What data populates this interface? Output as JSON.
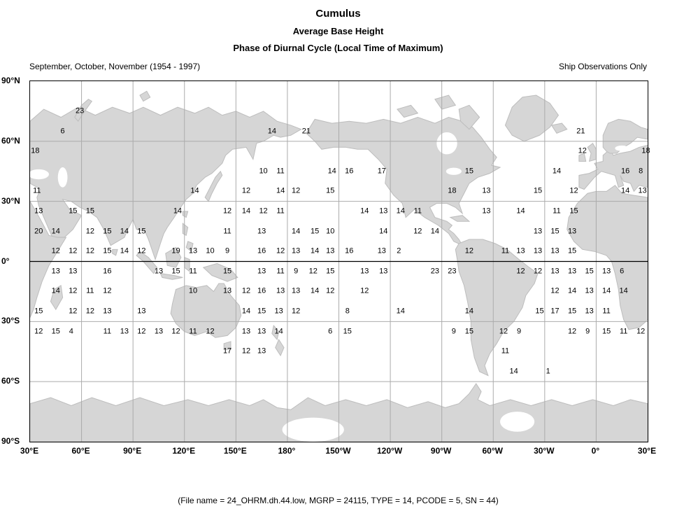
{
  "header": {
    "title": "Cumulus",
    "variable": "Average Base Height",
    "statistic": "Phase of Diurnal Cycle (Local Time of Maximum)",
    "period": "September, October, November (1954 - 1997)",
    "note": "Ship Observations Only"
  },
  "footer": {
    "text": "(File name = 24_OHRM.dh.44.low, MGRP = 24115, TYPE = 14, PCODE = 5, SN = 44)"
  },
  "colors": {
    "land": "#d6d6d6",
    "coast": "#bdbdbd",
    "grid": "#ababab",
    "frame": "#000000"
  },
  "chart_data": {
    "type": "heatmap",
    "title": "Cumulus — Average Base Height — Phase of Diurnal Cycle (Local Time of Maximum)",
    "legend_position": "none",
    "grid": true,
    "cell_size_deg": 10,
    "x_axis": {
      "ticks": [
        "30°E",
        "60°E",
        "90°E",
        "120°E",
        "150°E",
        "180°",
        "150°W",
        "120°W",
        "90°W",
        "60°W",
        "30°W",
        "0°",
        "30°E"
      ],
      "range_deg_east_of_30E": [
        0,
        360
      ]
    },
    "y_axis": {
      "ticks": [
        "90°N",
        "60°N",
        "30°N",
        "0°",
        "30°S",
        "60°S",
        "90°S"
      ],
      "range_lat": [
        90,
        -90
      ]
    },
    "rows": [
      {
        "lat": 75,
        "points": [
          [
            29,
            23
          ]
        ]
      },
      {
        "lat": 65,
        "points": [
          [
            19,
            6
          ],
          [
            141,
            14
          ],
          [
            161,
            21
          ],
          [
            321,
            21
          ]
        ]
      },
      {
        "lat": 55,
        "points": [
          [
            3,
            18
          ],
          [
            322,
            12
          ],
          [
            359,
            18
          ]
        ]
      },
      {
        "lat": 45,
        "points": [
          [
            136,
            10
          ],
          [
            146,
            11
          ],
          [
            176,
            14
          ],
          [
            186,
            16
          ],
          [
            205,
            17
          ],
          [
            256,
            15
          ],
          [
            307,
            14
          ],
          [
            347,
            16
          ],
          [
            356,
            8
          ]
        ]
      },
      {
        "lat": 35,
        "points": [
          [
            4,
            11
          ],
          [
            96,
            14
          ],
          [
            126,
            12
          ],
          [
            146,
            14
          ],
          [
            155,
            12
          ],
          [
            175,
            15
          ],
          [
            246,
            18
          ],
          [
            266,
            13
          ],
          [
            296,
            15
          ],
          [
            317,
            12
          ],
          [
            347,
            14
          ],
          [
            357,
            13
          ]
        ]
      },
      {
        "lat": 25,
        "points": [
          [
            5,
            13
          ],
          [
            25,
            15
          ],
          [
            35,
            15
          ],
          [
            86,
            14
          ],
          [
            115,
            12
          ],
          [
            126,
            14
          ],
          [
            136,
            12
          ],
          [
            146,
            11
          ],
          [
            195,
            14
          ],
          [
            206,
            13
          ],
          [
            216,
            14
          ],
          [
            226,
            11
          ],
          [
            266,
            13
          ],
          [
            286,
            14
          ],
          [
            307,
            11
          ],
          [
            317,
            15
          ]
        ]
      },
      {
        "lat": 15,
        "points": [
          [
            5,
            20
          ],
          [
            15,
            14
          ],
          [
            35,
            12
          ],
          [
            45,
            15
          ],
          [
            55,
            14
          ],
          [
            65,
            15
          ],
          [
            115,
            11
          ],
          [
            135,
            13
          ],
          [
            155,
            14
          ],
          [
            166,
            15
          ],
          [
            175,
            10
          ],
          [
            206,
            14
          ],
          [
            226,
            12
          ],
          [
            236,
            14
          ],
          [
            296,
            13
          ],
          [
            306,
            15
          ],
          [
            316,
            13
          ]
        ]
      },
      {
        "lat": 5,
        "points": [
          [
            15,
            12
          ],
          [
            25,
            12
          ],
          [
            35,
            12
          ],
          [
            45,
            15
          ],
          [
            55,
            14
          ],
          [
            65,
            12
          ],
          [
            85,
            19
          ],
          [
            95,
            13
          ],
          [
            105,
            10
          ],
          [
            115,
            9
          ],
          [
            135,
            16
          ],
          [
            146,
            12
          ],
          [
            155,
            13
          ],
          [
            166,
            14
          ],
          [
            175,
            13
          ],
          [
            186,
            16
          ],
          [
            205,
            13
          ],
          [
            215,
            2
          ],
          [
            256,
            12
          ],
          [
            277,
            11
          ],
          [
            286,
            13
          ],
          [
            296,
            13
          ],
          [
            306,
            13
          ],
          [
            316,
            15
          ]
        ]
      },
      {
        "lat": -5,
        "points": [
          [
            15,
            13
          ],
          [
            25,
            13
          ],
          [
            45,
            16
          ],
          [
            75,
            13
          ],
          [
            85,
            15
          ],
          [
            95,
            11
          ],
          [
            115,
            15
          ],
          [
            135,
            13
          ],
          [
            146,
            11
          ],
          [
            155,
            9
          ],
          [
            165,
            12
          ],
          [
            175,
            15
          ],
          [
            195,
            13
          ],
          [
            206,
            13
          ],
          [
            236,
            23
          ],
          [
            246,
            23
          ],
          [
            286,
            12
          ],
          [
            296,
            12
          ],
          [
            306,
            13
          ],
          [
            316,
            13
          ],
          [
            326,
            15
          ],
          [
            336,
            13
          ],
          [
            345,
            6
          ]
        ]
      },
      {
        "lat": -15,
        "points": [
          [
            15,
            14
          ],
          [
            25,
            12
          ],
          [
            35,
            11
          ],
          [
            45,
            12
          ],
          [
            95,
            10
          ],
          [
            115,
            13
          ],
          [
            126,
            12
          ],
          [
            135,
            16
          ],
          [
            146,
            13
          ],
          [
            155,
            13
          ],
          [
            166,
            14
          ],
          [
            175,
            12
          ],
          [
            195,
            12
          ],
          [
            306,
            12
          ],
          [
            316,
            14
          ],
          [
            326,
            13
          ],
          [
            336,
            14
          ],
          [
            346,
            14
          ]
        ]
      },
      {
        "lat": -25,
        "points": [
          [
            5,
            15
          ],
          [
            25,
            12
          ],
          [
            35,
            12
          ],
          [
            45,
            13
          ],
          [
            65,
            13
          ],
          [
            126,
            14
          ],
          [
            135,
            15
          ],
          [
            145,
            13
          ],
          [
            155,
            12
          ],
          [
            185,
            8
          ],
          [
            216,
            14
          ],
          [
            256,
            14
          ],
          [
            297,
            15
          ],
          [
            306,
            17
          ],
          [
            316,
            15
          ],
          [
            326,
            13
          ],
          [
            336,
            11
          ]
        ]
      },
      {
        "lat": -35,
        "points": [
          [
            5,
            12
          ],
          [
            15,
            15
          ],
          [
            24,
            4
          ],
          [
            45,
            11
          ],
          [
            55,
            13
          ],
          [
            65,
            12
          ],
          [
            75,
            13
          ],
          [
            85,
            12
          ],
          [
            95,
            11
          ],
          [
            105,
            12
          ],
          [
            126,
            13
          ],
          [
            135,
            13
          ],
          [
            145,
            14
          ],
          [
            175,
            6
          ],
          [
            185,
            15
          ],
          [
            247,
            9
          ],
          [
            256,
            15
          ],
          [
            276,
            12
          ],
          [
            285,
            9
          ],
          [
            316,
            12
          ],
          [
            325,
            9
          ],
          [
            336,
            15
          ],
          [
            346,
            11
          ],
          [
            356,
            12
          ]
        ]
      },
      {
        "lat": -45,
        "points": [
          [
            115,
            17
          ],
          [
            126,
            12
          ],
          [
            135,
            13
          ],
          [
            277,
            11
          ]
        ]
      },
      {
        "lat": -55,
        "points": [
          [
            282,
            14
          ],
          [
            302,
            1
          ]
        ]
      }
    ]
  }
}
